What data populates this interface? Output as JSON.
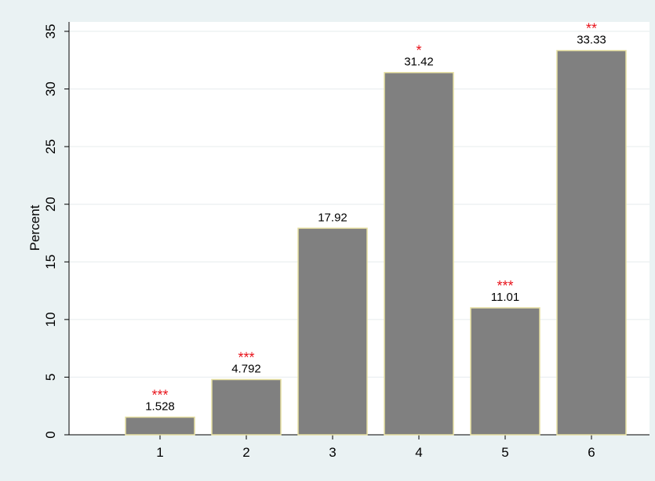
{
  "chart_data": {
    "type": "bar",
    "y_label": "Percent",
    "categories": [
      "1",
      "2",
      "3",
      "4",
      "5",
      "6"
    ],
    "values": [
      1.528,
      4.792,
      17.92,
      31.42,
      11.01,
      33.33
    ],
    "annotations": [
      "***",
      "***",
      null,
      "*",
      "***",
      "**"
    ],
    "color": "#808080",
    "edge_color": "#e6dfa0",
    "annotation_color": "#e8141c",
    "ylim": [
      0,
      35
    ],
    "yticks": [
      0,
      5,
      10,
      15,
      20,
      25,
      30,
      35
    ],
    "grid": true
  }
}
